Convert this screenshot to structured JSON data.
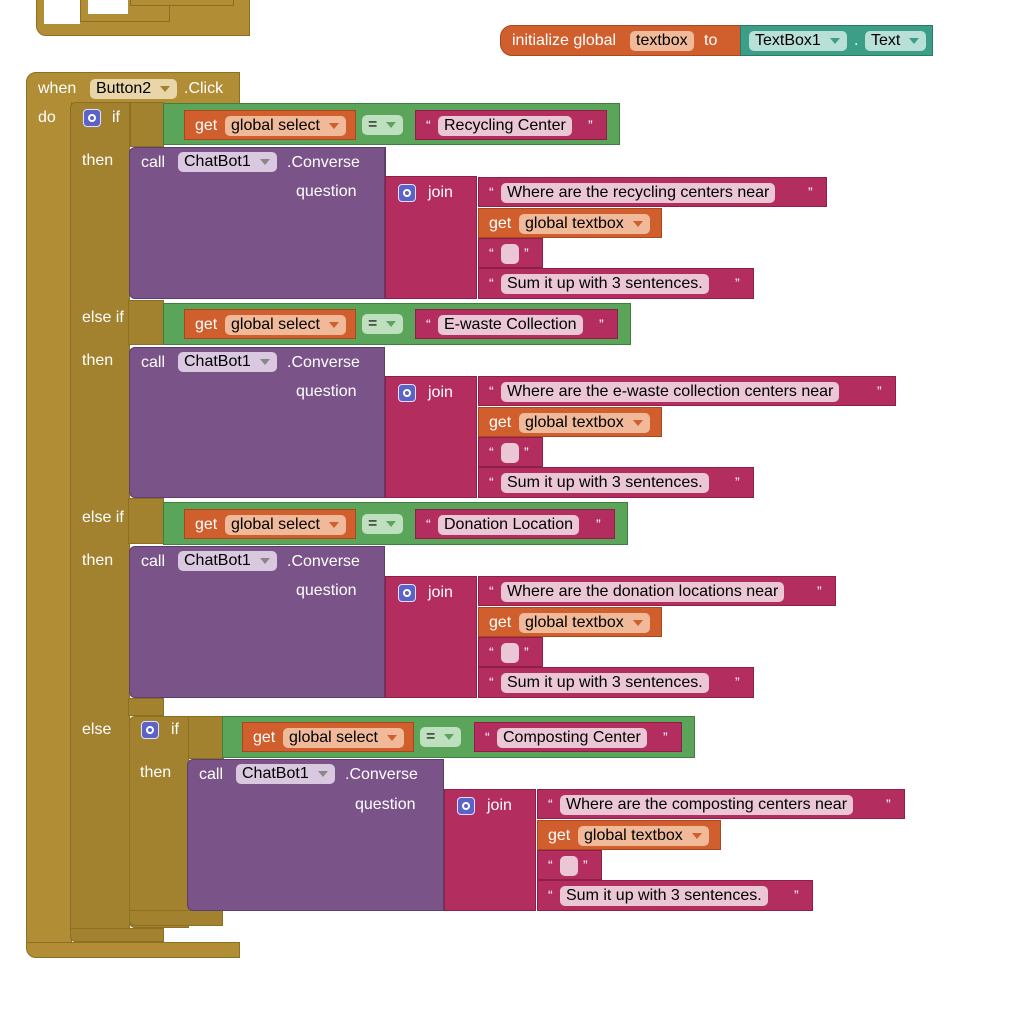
{
  "top_block": {
    "init_label": "initialize global",
    "var_name": "textbox",
    "to_label": "to",
    "component": "TextBox1",
    "dot": ".",
    "property": "Text"
  },
  "event": {
    "when_label": "when",
    "component": "Button2",
    "event_name": ".Click",
    "do_label": "do"
  },
  "labels": {
    "if": "if",
    "then": "then",
    "else_if": "else if",
    "else": "else",
    "call": "call",
    "question": "question",
    "join": "join",
    "get": "get",
    "eq": "=",
    "open_quote": "“",
    "close_quote": "”"
  },
  "branches": [
    {
      "kind": "if",
      "select_var": "global select",
      "compare": "Recycling Center",
      "chatbot": "ChatBot1",
      "method": ".Converse",
      "q1": "Where are the recycling centers near",
      "var": "global textbox",
      "q2": "",
      "q3": "Sum it up with 3 sentences."
    },
    {
      "kind": "else if",
      "select_var": "global select",
      "compare": "E-waste Collection",
      "chatbot": "ChatBot1",
      "method": ".Converse",
      "q1": "Where are the e-waste collection centers near",
      "var": "global textbox",
      "q2": "",
      "q3": "Sum it up with 3 sentences."
    },
    {
      "kind": "else if",
      "select_var": "global select",
      "compare": "Donation Location",
      "chatbot": "ChatBot1",
      "method": ".Converse",
      "q1": "Where are the donation locations near",
      "var": "global textbox",
      "q2": "",
      "q3": "Sum it up with 3 sentences."
    },
    {
      "kind": "else-if-nested",
      "select_var": "global select",
      "compare": "Composting Center",
      "chatbot": "ChatBot1",
      "method": ".Converse",
      "q1": "Where are the composting centers near",
      "var": "global textbox",
      "q2": "",
      "q3": "Sum it up with 3 sentences."
    }
  ]
}
